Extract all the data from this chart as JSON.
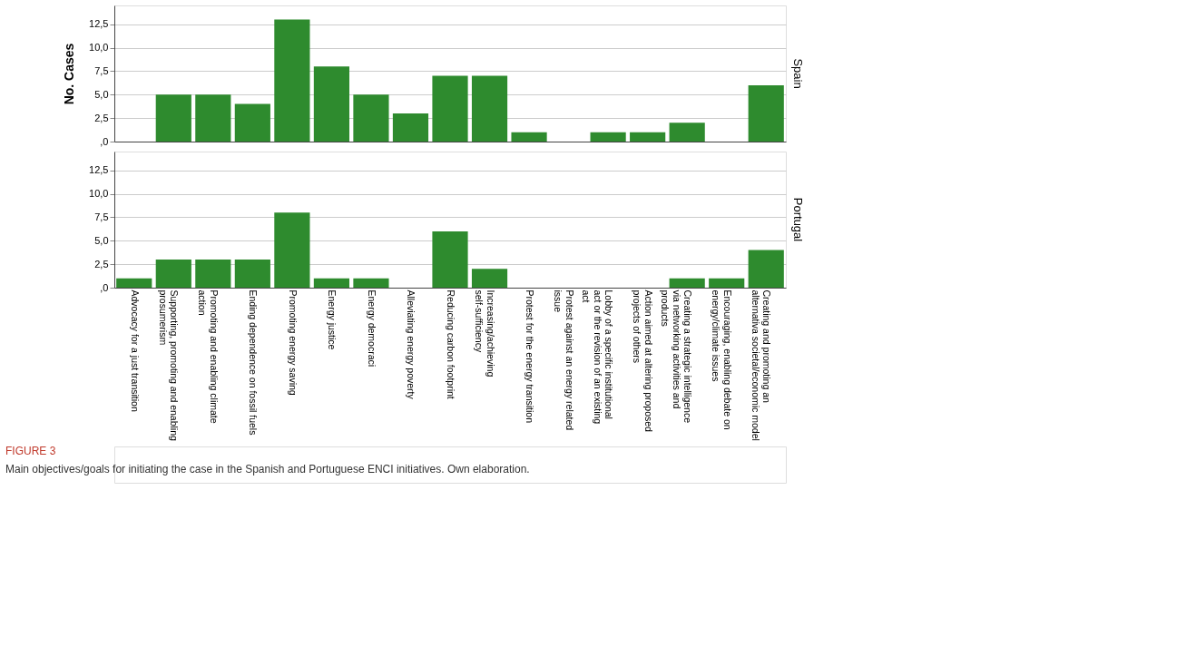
{
  "chart_data": [
    {
      "type": "bar",
      "title": "Spain",
      "ylabel": "No. Cases",
      "categories": [
        null,
        null,
        null,
        null,
        null,
        null,
        null,
        null,
        null,
        null,
        null,
        null,
        null,
        null,
        null,
        null,
        null
      ],
      "series": [
        {
          "color": "#2e8b2e",
          "values": [
            0,
            5,
            5,
            4,
            13,
            8,
            5,
            3,
            7,
            7,
            1,
            0,
            1,
            1,
            2,
            0,
            6
          ]
        }
      ],
      "ylim": [
        0,
        14.5
      ],
      "yticks": [
        {
          "value": 0,
          "label": ",0"
        },
        {
          "value": 2.5,
          "label": "2,5"
        },
        {
          "value": 5,
          "label": "5,0"
        },
        {
          "value": 7.5,
          "label": "7,5"
        },
        {
          "value": 10,
          "label": "10,0"
        },
        {
          "value": 12.5,
          "label": "12,5"
        }
      ],
      "grid": "y",
      "tick_labels": "y"
    },
    {
      "type": "bar",
      "title": "Portugal",
      "categories": [
        "Advocacy for a just transition",
        "Supporting, promoting and enabling prosumerism",
        "Promoting and enabling climate action",
        "Ending dependence on fossil fuels",
        "Promoting energy saving",
        "Energy justice",
        "Energy democraci",
        "Alleviating energy poverty",
        "Reducing carbon footprint",
        "Increasing/achieving self-sufficiency",
        "Protest for the energy transition",
        "Protest against an energy related issue",
        "Lobby of a specific institutional act or the revision of an existing act",
        "Action aimed at altering proposed projects of others",
        "Creating a strategic intelligence via networking activities and products",
        "Encouraging, enabling debate on energy/climate issues",
        "Creating and promoting an alternativa societal/economic model"
      ],
      "series": [
        {
          "color": "#2e8b2e",
          "values": [
            1,
            3,
            3,
            3,
            8,
            1,
            1,
            0,
            6,
            2,
            0,
            0,
            0,
            0,
            1,
            1,
            4
          ]
        }
      ],
      "ylim": [
        0,
        14.5
      ],
      "yticks": [
        {
          "value": 0,
          "label": ",0"
        },
        {
          "value": 2.5,
          "label": "2,5"
        },
        {
          "value": 5,
          "label": "5,0"
        },
        {
          "value": 7.5,
          "label": "7,5"
        },
        {
          "value": 10,
          "label": "10,0"
        },
        {
          "value": 12.5,
          "label": "12,5"
        }
      ],
      "grid": "y",
      "annotations": [
        "FIGURE 3",
        "Main objectives/goals for initiating the case in the Spanish and Portuguese ENCI initiatives. Own elaboration."
      ]
    }
  ]
}
